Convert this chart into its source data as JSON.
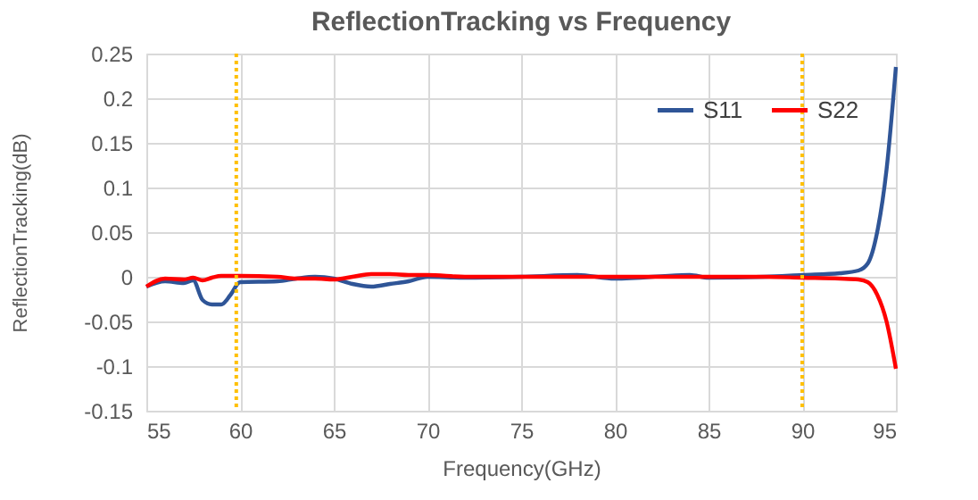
{
  "chart_data": {
    "type": "line",
    "title": "ReflectionTracking vs Frequency",
    "xlabel": "Frequency(GHz)",
    "ylabel": "ReflectionTracking(dB)",
    "x": [
      55,
      56,
      57,
      57.5,
      58,
      58.5,
      59,
      59.5,
      60,
      62,
      63,
      64,
      65,
      66,
      67,
      68,
      69,
      70,
      72,
      75,
      78,
      80,
      84,
      85,
      88,
      90,
      92,
      93,
      93.5,
      94,
      94.5,
      95
    ],
    "series": [
      {
        "name": "S11",
        "color": "#2f5597",
        "values": [
          -0.011,
          -0.005,
          -0.007,
          -0.004,
          -0.026,
          -0.031,
          -0.031,
          -0.02,
          -0.006,
          -0.005,
          -0.002,
          0,
          -0.002,
          -0.008,
          -0.011,
          -0.008,
          -0.005,
          0,
          -0.001,
          0,
          0.002,
          -0.002,
          0.002,
          -0.001,
          0,
          0.002,
          0.004,
          0.007,
          0.015,
          0.05,
          0.12,
          0.235
        ]
      },
      {
        "name": "S22",
        "color": "#ff0000",
        "values": [
          -0.011,
          -0.002,
          -0.003,
          -0.001,
          -0.004,
          -0.001,
          0.001,
          0.001,
          0.001,
          0,
          -0.002,
          -0.002,
          -0.003,
          0,
          0.003,
          0.003,
          0.002,
          0.002,
          0,
          0,
          0,
          0,
          0,
          0,
          0,
          -0.001,
          -0.002,
          -0.003,
          -0.006,
          -0.02,
          -0.05,
          -0.103
        ]
      }
    ],
    "xlim": [
      55,
      95
    ],
    "xticks": [
      55,
      60,
      65,
      70,
      75,
      80,
      85,
      90,
      95
    ],
    "ylim": [
      -0.15,
      0.25
    ],
    "yticks": [
      -0.15,
      -0.1,
      -0.05,
      0,
      0.05,
      0.1,
      0.15,
      0.2,
      0.25
    ],
    "ref_lines": [
      {
        "axis": "x",
        "value": 59.8,
        "color": "#ffc000",
        "line_style": "dotted"
      },
      {
        "axis": "x",
        "value": 90,
        "color": "#ffc000",
        "line_style": "dotted"
      }
    ],
    "grid": true,
    "legend": "top right",
    "marker": "none",
    "line_style": "solid"
  }
}
